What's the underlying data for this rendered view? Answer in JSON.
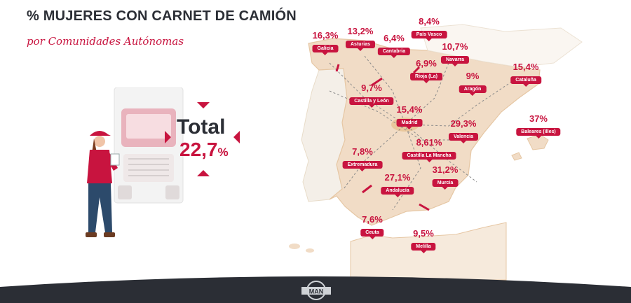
{
  "header": {
    "title": "% MUJERES CON CARNET DE CAMIÓN",
    "subtitle": "por Comunidades Autónomas"
  },
  "total": {
    "label": "Total",
    "value": "22,7",
    "unit": "%"
  },
  "regions": [
    {
      "name": "Galicia",
      "pct": "16,3%"
    },
    {
      "name": "Asturias",
      "pct": "13,2%"
    },
    {
      "name": "Cantabria",
      "pct": "6,4%"
    },
    {
      "name": "País Vasco",
      "pct": "8,4%"
    },
    {
      "name": "Navarra",
      "pct": "10,7%"
    },
    {
      "name": "Rioja (La)",
      "pct": "6,9%"
    },
    {
      "name": "Cataluña",
      "pct": "15,4%"
    },
    {
      "name": "Aragón",
      "pct": "9%"
    },
    {
      "name": "Castilla y León",
      "pct": "9,7%"
    },
    {
      "name": "Madrid",
      "pct": "15,4%"
    },
    {
      "name": "Valencia",
      "pct": "29,3%"
    },
    {
      "name": "Baleares (Illes)",
      "pct": "37%"
    },
    {
      "name": "Extremadura",
      "pct": "7,8%"
    },
    {
      "name": "Castilla La Mancha",
      "pct": "8,61%"
    },
    {
      "name": "Andalucía",
      "pct": "27,1%"
    },
    {
      "name": "Murcia",
      "pct": "31,2%"
    },
    {
      "name": "Ceuta",
      "pct": "7,6%"
    },
    {
      "name": "Melilla",
      "pct": "9,5%"
    }
  ],
  "colors": {
    "accent": "#c8143f",
    "text_dark": "#2b2e35",
    "land": "#f1dcc6",
    "land_border": "#e6c7a4",
    "portugal": "#f4f0ea",
    "footer": "#2b2e35"
  },
  "icons": {
    "truck": "truck-icon",
    "driver": "woman-driver-icon",
    "logo": "man-logo"
  },
  "footer": {
    "logo_text": "MAN"
  }
}
